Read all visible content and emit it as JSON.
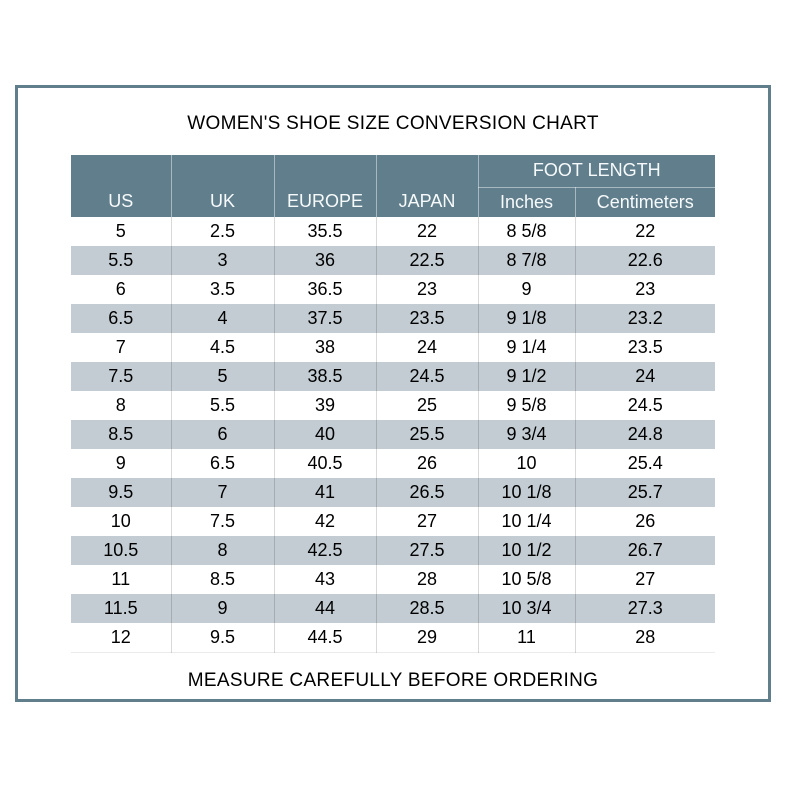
{
  "page": {
    "title": "WOMEN'S SHOE SIZE CONVERSION CHART",
    "footer": "MEASURE CAREFULLY BEFORE ORDERING"
  },
  "colors": {
    "frame": "#617e8c",
    "header_bg": "#617e8c",
    "header_text": "#f7fafb",
    "row_shaded": "#c2ccd2",
    "row_plain": "#ffffff",
    "body_text": "#000000"
  },
  "table": {
    "group_header": "FOOT LENGTH",
    "columns": [
      "US",
      "UK",
      "EUROPE",
      "JAPAN",
      "Inches",
      "Centimeters"
    ],
    "rows": [
      [
        "5",
        "2.5",
        "35.5",
        "22",
        "8 5/8",
        "22"
      ],
      [
        "5.5",
        "3",
        "36",
        "22.5",
        "8 7/8",
        "22.6"
      ],
      [
        "6",
        "3.5",
        "36.5",
        "23",
        "9",
        "23"
      ],
      [
        "6.5",
        "4",
        "37.5",
        "23.5",
        "9 1/8",
        "23.2"
      ],
      [
        "7",
        "4.5",
        "38",
        "24",
        "9 1/4",
        "23.5"
      ],
      [
        "7.5",
        "5",
        "38.5",
        "24.5",
        "9 1/2",
        "24"
      ],
      [
        "8",
        "5.5",
        "39",
        "25",
        "9 5/8",
        "24.5"
      ],
      [
        "8.5",
        "6",
        "40",
        "25.5",
        "9 3/4",
        "24.8"
      ],
      [
        "9",
        "6.5",
        "40.5",
        "26",
        "10",
        "25.4"
      ],
      [
        "9.5",
        "7",
        "41",
        "26.5",
        "10 1/8",
        "25.7"
      ],
      [
        "10",
        "7.5",
        "42",
        "27",
        "10 1/4",
        "26"
      ],
      [
        "10.5",
        "8",
        "42.5",
        "27.5",
        "10 1/2",
        "26.7"
      ],
      [
        "11",
        "8.5",
        "43",
        "28",
        "10 5/8",
        "27"
      ],
      [
        "11.5",
        "9",
        "44",
        "28.5",
        "10 3/4",
        "27.3"
      ],
      [
        "12",
        "9.5",
        "44.5",
        "29",
        "11",
        "28"
      ]
    ]
  }
}
